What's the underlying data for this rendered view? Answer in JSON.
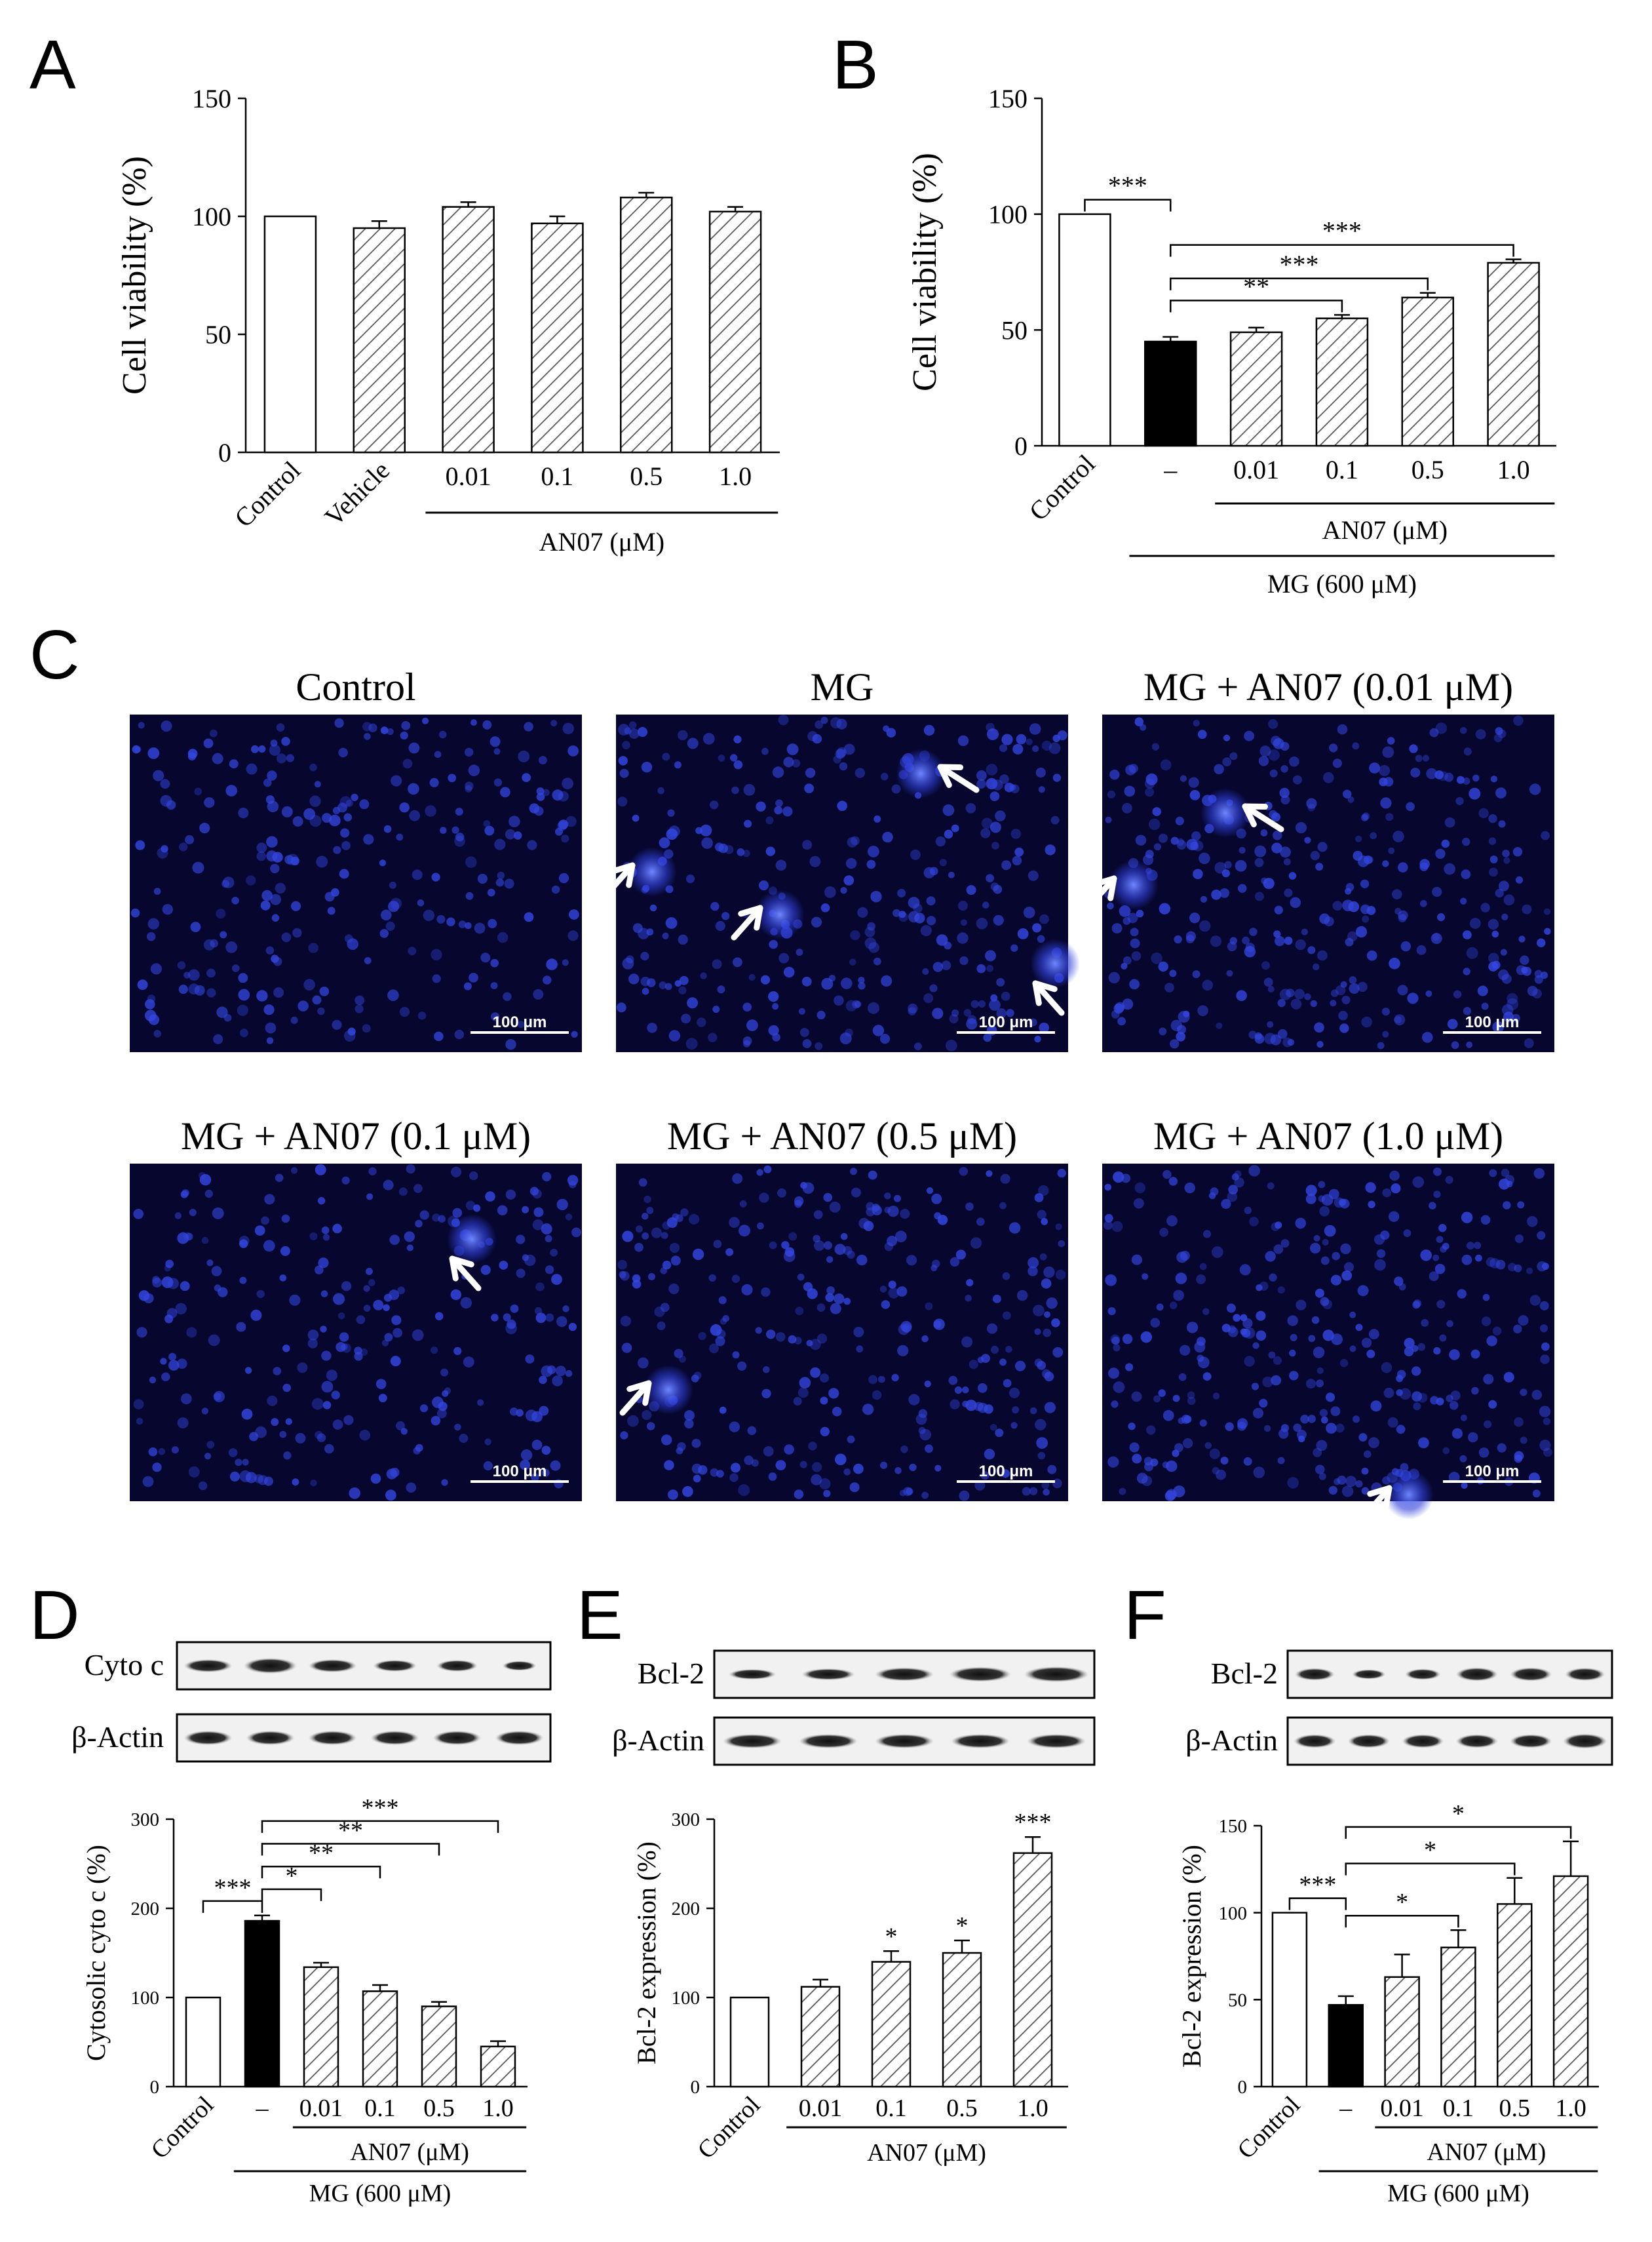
{
  "colors": {
    "white_bar": "#ffffff",
    "black_bar": "#000000",
    "hatch": "#555555",
    "micro_bg": "#06062e",
    "nucleus": "#2f3fd8",
    "arrow": "#ffffff"
  },
  "panels": {
    "A": {
      "letter": "A",
      "chart_data": {
        "type": "bar",
        "ylabel": "Cell viability (%)",
        "ylim": [
          0,
          150
        ],
        "yticks": [
          "0",
          "50",
          "100",
          "150"
        ],
        "categories": [
          "Control",
          "Vehicle",
          "0.01",
          "0.1",
          "0.5",
          "1.0"
        ],
        "values": [
          100,
          95,
          104,
          97,
          108,
          102
        ],
        "errors": [
          0,
          3,
          2,
          3,
          2,
          2
        ],
        "fills": [
          "white",
          "hatch",
          "hatch",
          "hatch",
          "hatch",
          "hatch"
        ],
        "group_labels": [
          "AN07 (μM)"
        ],
        "significance": []
      }
    },
    "B": {
      "letter": "B",
      "chart_data": {
        "type": "bar",
        "ylabel": "Cell viability (%)",
        "ylim": [
          0,
          150
        ],
        "yticks": [
          "0",
          "50",
          "100",
          "150"
        ],
        "categories": [
          "Control",
          "–",
          "0.01",
          "0.1",
          "0.5",
          "1.0"
        ],
        "values": [
          100,
          45,
          49,
          55,
          64,
          79
        ],
        "errors": [
          0,
          2,
          2,
          1.5,
          2,
          1.5
        ],
        "fills": [
          "white",
          "black",
          "hatch",
          "hatch",
          "hatch",
          "hatch"
        ],
        "group_labels": [
          "AN07 (μM)",
          "MG (600 μM)"
        ],
        "significance": [
          {
            "from": 0,
            "to": 1,
            "label": "***"
          },
          {
            "from": 1,
            "to": 3,
            "label": "**"
          },
          {
            "from": 1,
            "to": 4,
            "label": "***"
          },
          {
            "from": 1,
            "to": 5,
            "label": "***"
          }
        ]
      }
    },
    "C": {
      "letter": "C",
      "images": [
        {
          "title": "Control",
          "scale": "100 μm"
        },
        {
          "title": "MG",
          "scale": "100 μm"
        },
        {
          "title": "MG + AN07 (0.01 μM)",
          "scale": "100 μm"
        },
        {
          "title": "MG + AN07 (0.1 μM)",
          "scale": "100 μm"
        },
        {
          "title": "MG + AN07 (0.5 μM)",
          "scale": "100 μm"
        },
        {
          "title": "MG + AN07 (1.0 μM)",
          "scale": "100 μm"
        }
      ]
    },
    "D": {
      "letter": "D",
      "blots": [
        "Cyto c",
        "β-Actin"
      ],
      "chart_data": {
        "type": "bar",
        "ylabel": "Cytosolic cyto c (%)",
        "ylim": [
          0,
          300
        ],
        "yticks": [
          "0",
          "100",
          "200",
          "300"
        ],
        "categories": [
          "Control",
          "–",
          "0.01",
          "0.1",
          "0.5",
          "1.0"
        ],
        "values": [
          100,
          186,
          134,
          107,
          90,
          45
        ],
        "errors": [
          0,
          6,
          5,
          7,
          5,
          6
        ],
        "fills": [
          "white",
          "black",
          "hatch",
          "hatch",
          "hatch",
          "hatch"
        ],
        "group_labels": [
          "AN07 (μM)",
          "MG (600 μM)"
        ],
        "significance": [
          {
            "from": 0,
            "to": 1,
            "label": "***"
          },
          {
            "from": 1,
            "to": 2,
            "label": "*"
          },
          {
            "from": 1,
            "to": 3,
            "label": "**"
          },
          {
            "from": 1,
            "to": 4,
            "label": "**"
          },
          {
            "from": 1,
            "to": 5,
            "label": "***"
          }
        ]
      }
    },
    "E": {
      "letter": "E",
      "blots": [
        "Bcl-2",
        "β-Actin"
      ],
      "chart_data": {
        "type": "bar",
        "ylabel": "Bcl-2 expression (%)",
        "ylim": [
          0,
          300
        ],
        "yticks": [
          "0",
          "100",
          "200",
          "300"
        ],
        "categories": [
          "Control",
          "0.01",
          "0.1",
          "0.5",
          "1.0"
        ],
        "values": [
          100,
          112,
          140,
          150,
          262
        ],
        "errors": [
          0,
          8,
          12,
          14,
          18
        ],
        "fills": [
          "white",
          "hatch",
          "hatch",
          "hatch",
          "hatch"
        ],
        "group_labels": [
          "AN07 (μM)"
        ],
        "bar_marks": [
          "",
          "",
          "*",
          "*",
          "***"
        ],
        "significance": []
      }
    },
    "F": {
      "letter": "F",
      "blots": [
        "Bcl-2",
        "β-Actin"
      ],
      "chart_data": {
        "type": "bar",
        "ylabel": "Bcl-2 expression (%)",
        "ylim": [
          0,
          150
        ],
        "yticks": [
          "0",
          "50",
          "100",
          "150"
        ],
        "categories": [
          "Control",
          "–",
          "0.01",
          "0.1",
          "0.5",
          "1.0"
        ],
        "values": [
          100,
          47,
          63,
          80,
          105,
          121
        ],
        "errors": [
          0,
          5,
          13,
          10,
          15,
          20
        ],
        "fills": [
          "white",
          "black",
          "hatch",
          "hatch",
          "hatch",
          "hatch"
        ],
        "group_labels": [
          "AN07 (μM)",
          "MG (600 μM)"
        ],
        "significance": [
          {
            "from": 0,
            "to": 1,
            "label": "***"
          },
          {
            "from": 1,
            "to": 3,
            "label": "*"
          },
          {
            "from": 1,
            "to": 4,
            "label": "*"
          },
          {
            "from": 1,
            "to": 5,
            "label": "*"
          }
        ]
      }
    }
  }
}
